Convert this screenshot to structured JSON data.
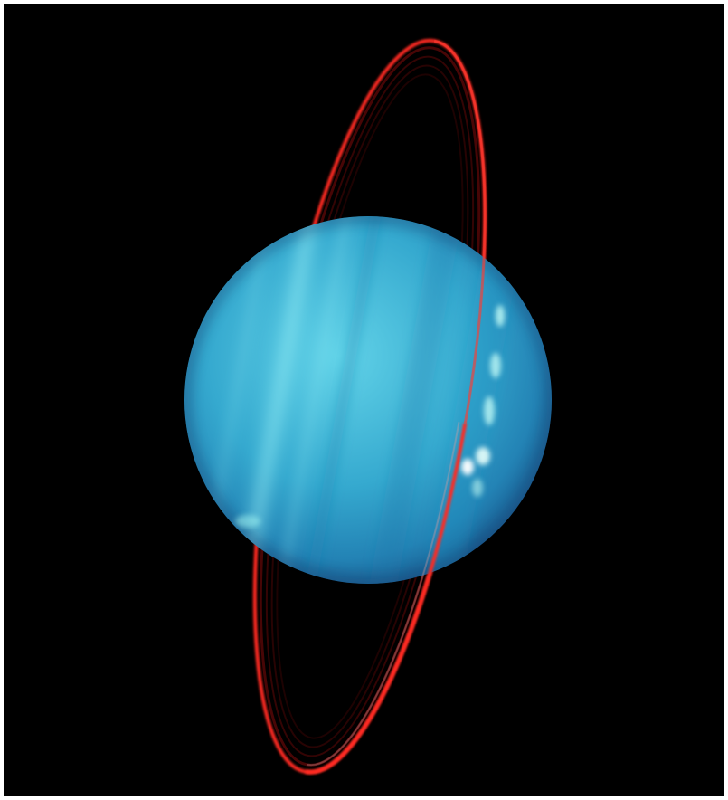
{
  "image": {
    "subject": "",
    "colors": {
      "background": "#000000",
      "border": "#ffffff",
      "planet_core": "#5bd0e6",
      "planet_mid": "#2fa3c9",
      "planet_edge": "#1c5f8f",
      "ring_bright": "#ff2a22",
      "ring_dim": "#7a0a0a",
      "cloud_highlight": "#e8fffb"
    }
  }
}
